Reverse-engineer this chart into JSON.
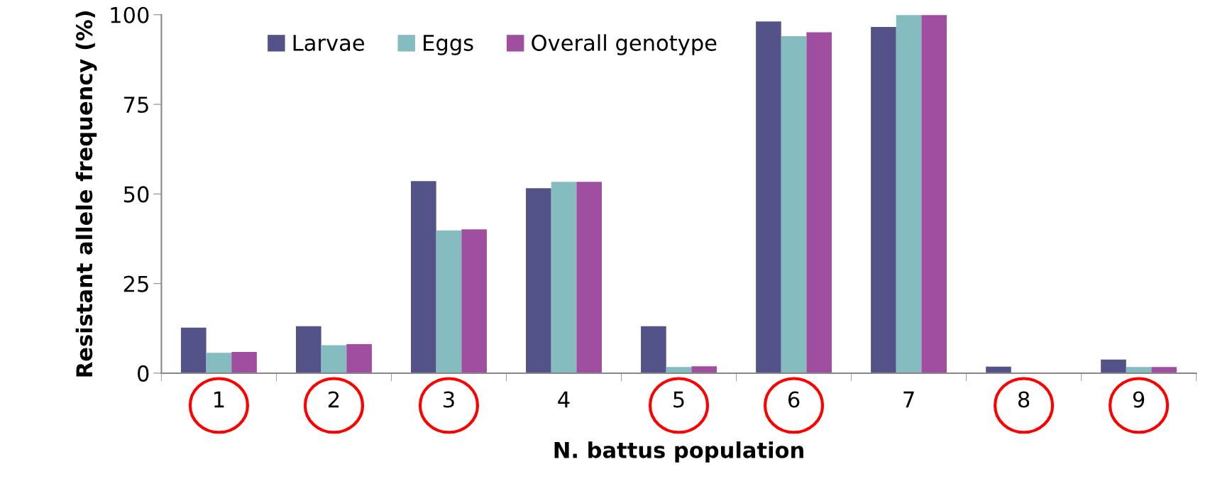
{
  "chart_data": {
    "type": "bar",
    "xlabel": "N. battus population",
    "ylabel": "Resistant allele frequency (%)",
    "categories": [
      "1",
      "2",
      "3",
      "4",
      "5",
      "6",
      "7",
      "8",
      "9"
    ],
    "series": [
      {
        "name": "Larvae",
        "color": "#535389",
        "values": [
          12.7,
          13.1,
          53.6,
          51.6,
          13.1,
          98.1,
          96.6,
          1.8,
          3.8
        ]
      },
      {
        "name": "Eggs",
        "color": "#85bcc0",
        "values": [
          5.7,
          7.8,
          39.8,
          53.4,
          1.7,
          94.0,
          99.9,
          0,
          1.7
        ]
      },
      {
        "name": "Overall genotype",
        "color": "#a04ea0",
        "values": [
          5.9,
          8.1,
          40.1,
          53.4,
          1.9,
          95.1,
          99.9,
          0,
          1.7
        ]
      }
    ],
    "ylim": [
      0,
      100
    ],
    "yticks": [
      0,
      25,
      50,
      75,
      100
    ],
    "grid": false,
    "legend": "top"
  }
}
